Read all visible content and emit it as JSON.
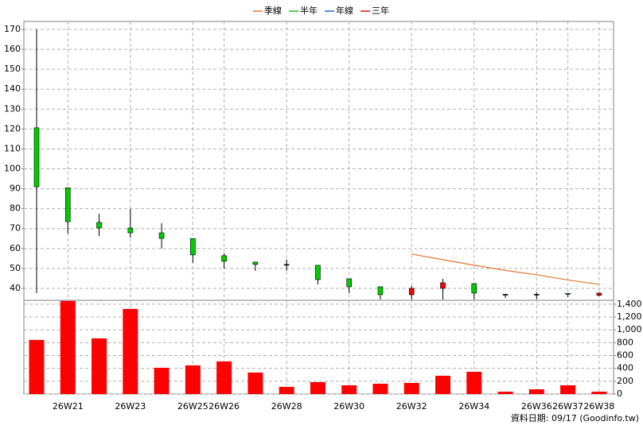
{
  "chart_data": [
    {
      "type": "candlestick",
      "categories": [
        null,
        "26W21",
        null,
        "26W23",
        null,
        "26W25",
        "26W26",
        null,
        "26W28",
        null,
        "26W30",
        null,
        "26W32",
        null,
        "26W34",
        null,
        "26W36",
        "26W37",
        "26W38"
      ],
      "open": [
        120.6,
        90.5,
        73.1,
        70.3,
        67.9,
        65,
        56.4,
        53.2,
        52,
        51.6,
        44.8,
        40.8,
        36.8,
        40,
        42.4,
        37,
        37,
        37.5,
        36.5
      ],
      "high": [
        170,
        90.5,
        77.5,
        79.9,
        72.7,
        65,
        57.6,
        53.2,
        54.5,
        51.6,
        44.8,
        40.8,
        41.2,
        44.8,
        42.4,
        37.2,
        38,
        37.6,
        38
      ],
      "low": [
        37.6,
        67.5,
        66.3,
        65.5,
        60,
        52.8,
        50,
        48.8,
        48.8,
        42,
        37.6,
        34.4,
        34.4,
        34.4,
        34.4,
        35.2,
        34.5,
        35.6,
        36
      ],
      "close": [
        91,
        73.5,
        70.3,
        67.9,
        65.1,
        56.8,
        53.6,
        52,
        52,
        44.4,
        40.8,
        36.8,
        40,
        42.8,
        37.6,
        37,
        37,
        37,
        37.6
      ],
      "up_color": "#ff0000",
      "down_color": "#00cc00",
      "series": [
        {
          "name": "季線",
          "color": "#e8742a",
          "values": [
            null,
            null,
            null,
            null,
            null,
            null,
            null,
            null,
            null,
            null,
            null,
            null,
            57.2,
            54.4,
            51.6,
            49,
            46.8,
            44.2,
            42
          ]
        },
        {
          "name": "半年",
          "color": "#22c022",
          "values": [
            null,
            null,
            null,
            null,
            null,
            null,
            null,
            null,
            null,
            null,
            null,
            null,
            null,
            null,
            null,
            null,
            null,
            null,
            null
          ]
        },
        {
          "name": "年線",
          "color": "#2060e0",
          "values": [
            null,
            null,
            null,
            null,
            null,
            null,
            null,
            null,
            null,
            null,
            null,
            null,
            null,
            null,
            null,
            null,
            null,
            null,
            null
          ]
        },
        {
          "name": "三年",
          "color": "#e01010",
          "values": [
            null,
            null,
            null,
            null,
            null,
            null,
            null,
            null,
            null,
            null,
            null,
            null,
            null,
            null,
            null,
            null,
            null,
            null,
            null
          ]
        }
      ],
      "ylim": [
        34,
        174
      ],
      "yticks": [
        40,
        50,
        60,
        70,
        80,
        90,
        100,
        110,
        120,
        130,
        140,
        150,
        160,
        170
      ],
      "grid": true
    },
    {
      "type": "bar",
      "categories": [
        null,
        "26W21",
        null,
        "26W23",
        null,
        "26W25",
        "26W26",
        null,
        "26W28",
        null,
        "26W30",
        null,
        "26W32",
        null,
        "26W34",
        null,
        "26W36",
        "26W37",
        "26W38"
      ],
      "values": [
        843,
        1450,
        867,
        1326,
        409,
        446,
        508,
        335,
        112,
        186,
        136,
        161,
        173,
        285,
        347,
        37,
        74,
        136,
        37
      ],
      "color": "#ff0000",
      "ylim": [
        0,
        1460
      ],
      "yticks": [
        0,
        200,
        400,
        600,
        800,
        {
          "value": 1000,
          "label": "1,000"
        },
        {
          "value": 1200,
          "label": "1,200"
        },
        {
          "value": 1400,
          "label": "1,400"
        }
      ],
      "grid": true
    }
  ],
  "footer": "資料日期: 09/17  (Goodinfo.tw)"
}
